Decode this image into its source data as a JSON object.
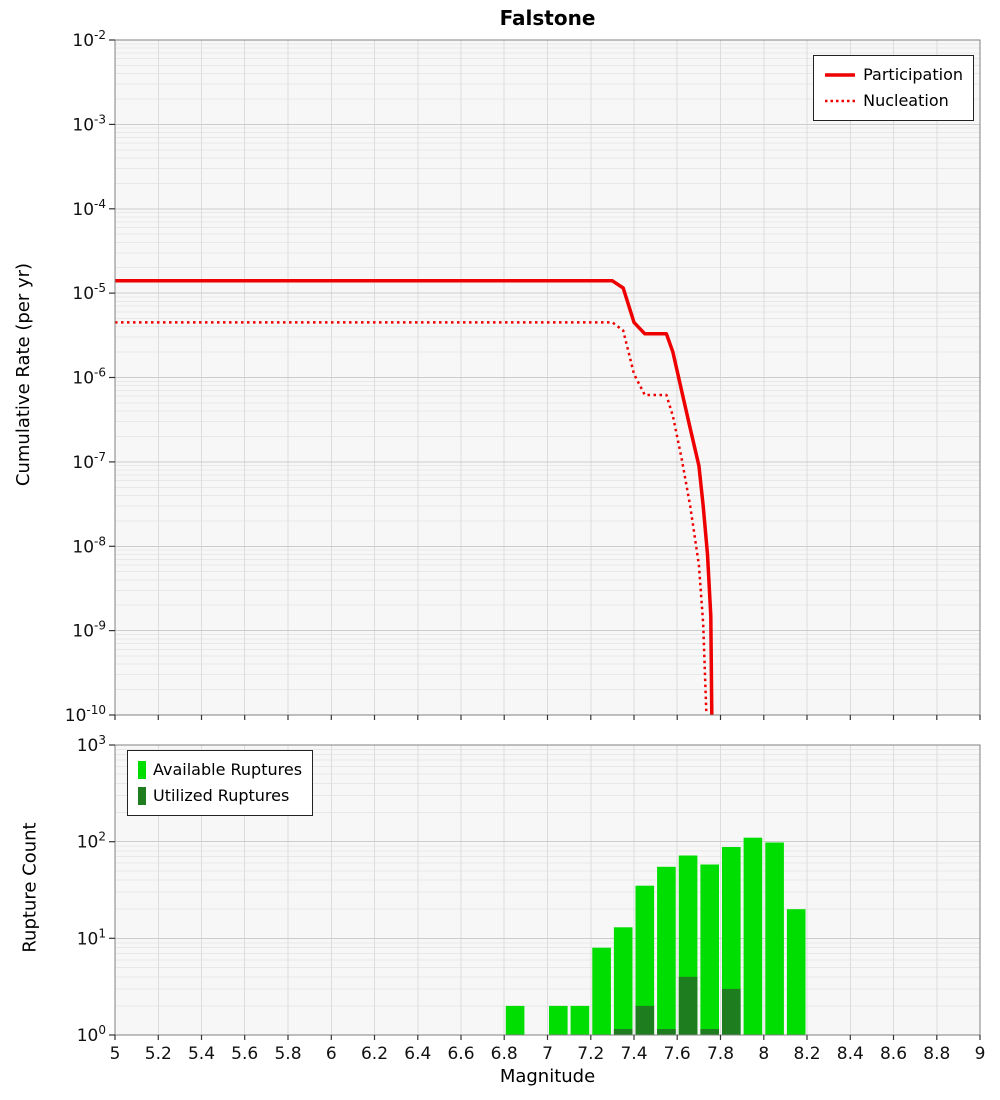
{
  "title": "Falstone",
  "chart_data": [
    {
      "type": "line",
      "title": "Falstone",
      "ylabel": "Cumulative Rate (per yr)",
      "y_scale": "log",
      "ylim_exp": [
        -10,
        -2
      ],
      "y_ticks_exp": [
        -2,
        -3,
        -4,
        -5,
        -6,
        -7,
        -8,
        -9,
        -10
      ],
      "xlim": [
        5,
        9
      ],
      "x_ticks": [
        5,
        5.2,
        5.4,
        5.6,
        5.8,
        6,
        6.2,
        6.4,
        6.6,
        6.8,
        7,
        7.2,
        7.4,
        7.6,
        7.8,
        8,
        8.2,
        8.4,
        8.6,
        8.8,
        9
      ],
      "x_tick_labels": [
        "5",
        "5.2",
        "5.4",
        "5.6",
        "5.8",
        "6",
        "6.2",
        "6.4",
        "6.6",
        "6.8",
        "7",
        "7.2",
        "7.4",
        "7.6",
        "7.8",
        "8",
        "8.2",
        "8.4",
        "8.6",
        "8.8",
        "9"
      ],
      "grid": true,
      "legend_position": "top-right",
      "series": [
        {
          "name": "Participation",
          "style": "solid",
          "color": "#ee0000",
          "line_width": 3.5,
          "points": [
            [
              5.0,
              1.4e-05
            ],
            [
              7.3,
              1.4e-05
            ],
            [
              7.35,
              1.15e-05
            ],
            [
              7.4,
              4.5e-06
            ],
            [
              7.45,
              3.3e-06
            ],
            [
              7.55,
              3.3e-06
            ],
            [
              7.58,
              2e-06
            ],
            [
              7.62,
              7e-07
            ],
            [
              7.66,
              2.5e-07
            ],
            [
              7.7,
              9e-08
            ],
            [
              7.72,
              3e-08
            ],
            [
              7.74,
              8e-09
            ],
            [
              7.755,
              1.5e-09
            ],
            [
              7.76,
              1e-10
            ]
          ]
        },
        {
          "name": "Nucleation",
          "style": "dotted",
          "color": "#ee0000",
          "line_width": 2.5,
          "points": [
            [
              5.0,
              4.5e-06
            ],
            [
              7.3,
              4.5e-06
            ],
            [
              7.35,
              3.6e-06
            ],
            [
              7.4,
              1.1e-06
            ],
            [
              7.45,
              6.2e-07
            ],
            [
              7.55,
              6.2e-07
            ],
            [
              7.58,
              3.5e-07
            ],
            [
              7.62,
              1.1e-07
            ],
            [
              7.66,
              3e-08
            ],
            [
              7.7,
              6e-09
            ],
            [
              7.72,
              1.2e-09
            ],
            [
              7.735,
              1e-10
            ]
          ]
        }
      ]
    },
    {
      "type": "bar",
      "ylabel": "Rupture Count",
      "xlabel": "Magnitude",
      "y_scale": "log",
      "ylim_exp": [
        0,
        3
      ],
      "y_ticks_exp": [
        0,
        1,
        2,
        3
      ],
      "bin_width": 0.1,
      "legend_position": "top-left",
      "series": [
        {
          "name": "Available Ruptures",
          "color": "#00dd00",
          "bars": [
            [
              6.85,
              2
            ],
            [
              7.05,
              2
            ],
            [
              7.15,
              2
            ],
            [
              7.25,
              8
            ],
            [
              7.35,
              13
            ],
            [
              7.45,
              35
            ],
            [
              7.55,
              55
            ],
            [
              7.65,
              72
            ],
            [
              7.75,
              58
            ],
            [
              7.85,
              88
            ],
            [
              7.95,
              110
            ],
            [
              8.05,
              98
            ],
            [
              8.15,
              20
            ]
          ]
        },
        {
          "name": "Utilized Ruptures",
          "color": "#1e7d1e",
          "bars": [
            [
              7.35,
              1
            ],
            [
              7.45,
              2
            ],
            [
              7.55,
              1
            ],
            [
              7.65,
              4
            ],
            [
              7.75,
              1
            ],
            [
              7.85,
              3
            ]
          ]
        }
      ]
    }
  ]
}
